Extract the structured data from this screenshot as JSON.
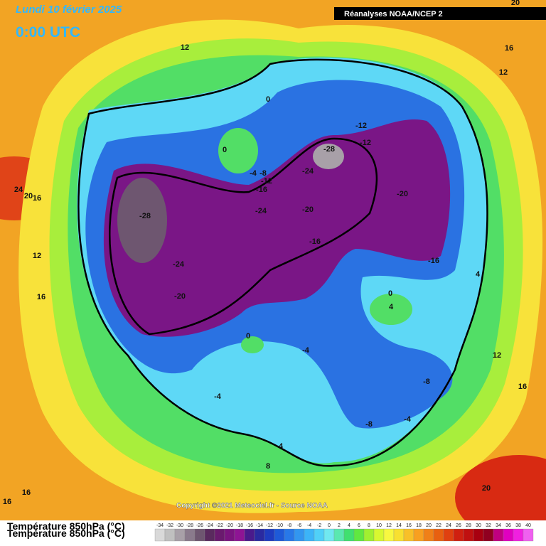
{
  "header": {
    "date": "Lundi 10 février 2025",
    "time": "0:00 UTC",
    "source": "Réanalyses NOAA/NCEP 2"
  },
  "copyright": "Copyright ©2021 Meteociel.fr - Source NOAA",
  "legend": {
    "title": "Température 850hPa (°C)",
    "scale": [
      -34,
      -32,
      -30,
      -28,
      -26,
      -24,
      -22,
      -20,
      -18,
      -16,
      -14,
      -12,
      -10,
      -8,
      -6,
      -4,
      -2,
      0,
      2,
      4,
      6,
      8,
      10,
      12,
      14,
      16,
      18,
      20,
      22,
      24,
      26,
      28,
      30,
      32,
      34,
      36,
      38,
      40
    ],
    "colors": [
      "#d9d9d9",
      "#c0c0c0",
      "#a8a0a8",
      "#8a7a8c",
      "#6e5670",
      "#5a2a5e",
      "#6a1a6e",
      "#7a1480",
      "#8e1494",
      "#4a1a8c",
      "#2a2aa0",
      "#1e3cc0",
      "#1e5ad8",
      "#2878e8",
      "#3296f0",
      "#3cb4f8",
      "#50d0f8",
      "#70e8f0",
      "#5ae8b0",
      "#40e070",
      "#60e840",
      "#a0f030",
      "#d8f830",
      "#f8f840",
      "#f8e030",
      "#f8c028",
      "#f8a020",
      "#f08018",
      "#e86010",
      "#e04010",
      "#d02010",
      "#c01010",
      "#a80010",
      "#900020",
      "#c00080",
      "#e000c0",
      "#f020e0",
      "#f060f0"
    ]
  },
  "contour_labels": [
    20,
    12,
    16,
    12,
    0,
    -12,
    -12,
    0,
    -28,
    -4,
    -8,
    -24,
    -12,
    -16,
    24,
    20,
    16,
    -20,
    -24,
    -20,
    -28,
    -16,
    12,
    -24,
    -16,
    4,
    16,
    -20,
    0,
    4,
    0,
    -4,
    12,
    -8,
    16,
    -4,
    -4,
    -8,
    4,
    8,
    20,
    16,
    16
  ]
}
